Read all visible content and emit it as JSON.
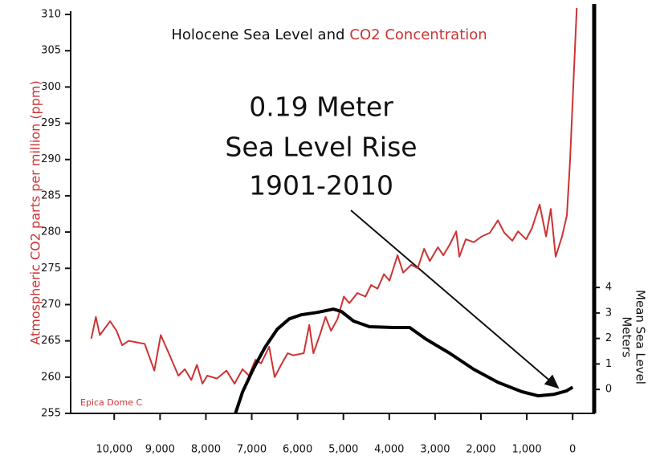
{
  "chart_data": {
    "type": "line",
    "title": [
      "Holocene Sea Level and",
      "CO2 Concentration"
    ],
    "ylabel": "Atmospheric CO2 parts per million (ppm)",
    "y2label": [
      "Mean Sea Level",
      "Meters"
    ],
    "annotation": [
      "0.19 Meter",
      "Sea Level Rise",
      "1901-2010"
    ],
    "source_note": "Epica Dome C",
    "xlim": [
      10950,
      -470
    ],
    "xticks": [
      {
        "value": 10000,
        "label": "10,000"
      },
      {
        "value": 9000,
        "label": "9,000"
      },
      {
        "value": 8000,
        "label": "8,000"
      },
      {
        "value": 7000,
        "label": "7,000"
      },
      {
        "value": 6000,
        "label": "6,000"
      },
      {
        "value": 5000,
        "label": "5,000"
      },
      {
        "value": 4000,
        "label": "4,000"
      },
      {
        "value": 3000,
        "label": "3,000"
      },
      {
        "value": 2000,
        "label": "2,000"
      },
      {
        "value": 1000,
        "label": "1,000"
      },
      0
    ],
    "ylim": [
      255,
      310
    ],
    "yticks": [
      255,
      260,
      265,
      270,
      275,
      280,
      285,
      290,
      295,
      300,
      305,
      310
    ],
    "y2lim": [
      -0.94,
      14.71
    ],
    "y2ticks": [
      0,
      1,
      2,
      3,
      4
    ],
    "series": [
      {
        "name": "CO2 Concentration",
        "color": "#cc3333",
        "x": [
          10500,
          10400,
          10315,
          10090,
          9950,
          9825,
          9685,
          9335,
          9125,
          8985,
          8810,
          8600,
          8460,
          8320,
          8195,
          8075,
          7970,
          7760,
          7550,
          7375,
          7200,
          7060,
          6920,
          6795,
          6620,
          6500,
          6360,
          6215,
          6095,
          5865,
          5745,
          5655,
          5515,
          5390,
          5270,
          5130,
          4990,
          4870,
          4695,
          4520,
          4395,
          4255,
          4115,
          3995,
          3820,
          3695,
          3520,
          3380,
          3240,
          3115,
          2940,
          2820,
          2680,
          2540,
          2470,
          2330,
          2155,
          1980,
          1805,
          1630,
          1490,
          1315,
          1190,
          1015,
          890,
          720,
          580,
          475,
          370,
          230,
          125,
          55,
          -20,
          -90
        ],
        "values": [
          265.3,
          268.3,
          265.8,
          267.7,
          266.4,
          264.4,
          265,
          264.6,
          260.9,
          265.8,
          263.3,
          260.2,
          261.1,
          259.6,
          261.7,
          259.1,
          260.2,
          259.8,
          260.9,
          259.1,
          261.1,
          260.2,
          262.4,
          261.9,
          264.2,
          260,
          261.7,
          263.3,
          263,
          263.3,
          267.2,
          263.3,
          265.8,
          268.3,
          266.4,
          268,
          271.1,
          270.2,
          271.6,
          271.1,
          272.7,
          272.2,
          274.2,
          273.3,
          276.8,
          274.4,
          275.5,
          275,
          277.7,
          276,
          277.9,
          276.8,
          278.3,
          280.1,
          276.6,
          279,
          278.6,
          279.4,
          279.9,
          281.6,
          279.9,
          278.8,
          280.1,
          279,
          280.5,
          283.8,
          279.4,
          283.2,
          276.6,
          279.4,
          282.3,
          289.9,
          300.9,
          310.9
        ]
      },
      {
        "name": "Sea Level",
        "color": "#000000",
        "axis": "y2",
        "x": [
          7355,
          7200,
          6970,
          6705,
          6445,
          6180,
          5920,
          5570,
          5220,
          5045,
          4780,
          4430,
          3905,
          3555,
          3205,
          2680,
          2155,
          1630,
          1105,
          755,
          405,
          140,
          0
        ],
        "values": [
          -0.94,
          -0.1,
          0.79,
          1.67,
          2.36,
          2.77,
          2.93,
          3.02,
          3.15,
          3.06,
          2.68,
          2.46,
          2.43,
          2.43,
          1.98,
          1.42,
          0.79,
          0.28,
          -0.09,
          -0.25,
          -0.19,
          -0.06,
          0.09
        ]
      }
    ]
  }
}
